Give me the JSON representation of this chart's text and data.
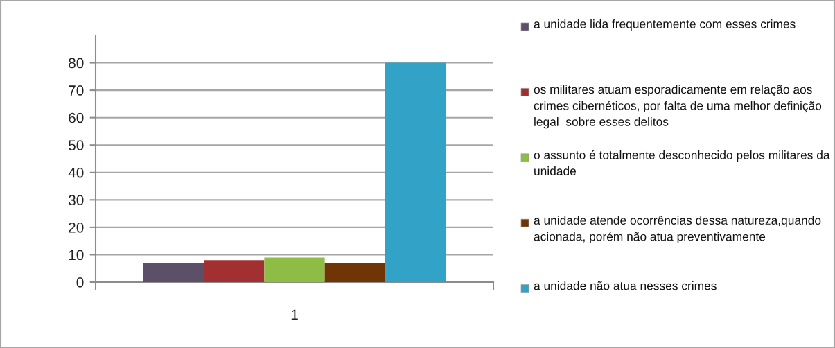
{
  "chart_data": {
    "type": "bar",
    "categories": [
      "1"
    ],
    "series": [
      {
        "name": "a unidade lida frequentemente com esses crimes",
        "color": "#5b5068",
        "values": [
          7
        ]
      },
      {
        "name": "os militares atuam esporadicamente em relação aos crimes cibernéticos, por falta de uma melhor definição legal  sobre esses delitos",
        "color": "#a33030",
        "values": [
          8
        ]
      },
      {
        "name": "o assunto é totalmente desconhecido pelos militares da unidade",
        "color": "#8fbc45",
        "values": [
          9
        ]
      },
      {
        "name": "a unidade atende ocorrências dessa natureza,quando acionada, porém não atua preventivamente",
        "color": "#703505",
        "values": [
          7
        ]
      },
      {
        "name": "a unidade não atua nesses crimes",
        "color": "#32a2c6",
        "values": [
          80
        ]
      }
    ],
    "ylim": [
      0,
      90
    ],
    "yticks": [
      0,
      10,
      20,
      30,
      40,
      50,
      60,
      70,
      80
    ],
    "grid": "y",
    "legend": "right"
  }
}
